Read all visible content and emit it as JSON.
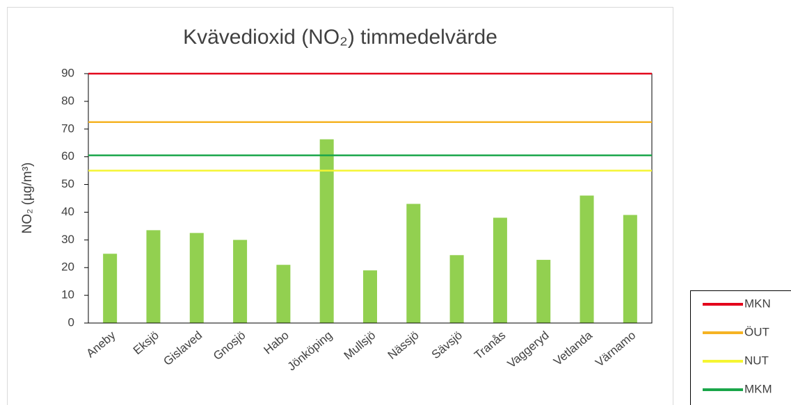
{
  "chart_data": {
    "type": "bar",
    "title": "Kvävedioxid (NO₂) timmedelvärde",
    "y_label": "NO₂ (µg/m³)",
    "categories": [
      "Aneby",
      "Eksjö",
      "Gislaved",
      "Gnosjö",
      "Habo",
      "Jönköping",
      "Mullsjö",
      "Nässjö",
      "Sävsjö",
      "Tranås",
      "Vaggeryd",
      "Vetlanda",
      "Värnamo"
    ],
    "values": [
      25,
      33.5,
      32.5,
      30,
      21,
      66.3,
      19,
      43,
      24.5,
      38,
      22.8,
      46,
      39
    ],
    "color": "#92d050",
    "ylim": [
      0,
      90
    ],
    "yticks": [
      0,
      10,
      20,
      30,
      40,
      50,
      60,
      70,
      80,
      90
    ],
    "reference_lines": [
      {
        "name": "MKN",
        "value": 90,
        "color": "#e3001b"
      },
      {
        "name": "ÖUT",
        "value": 72.5,
        "color": "#f5b323"
      },
      {
        "name": "NUT",
        "value": 55,
        "color": "#f5f532"
      },
      {
        "name": "MKM",
        "value": 60.5,
        "color": "#1aa64a"
      }
    ]
  }
}
